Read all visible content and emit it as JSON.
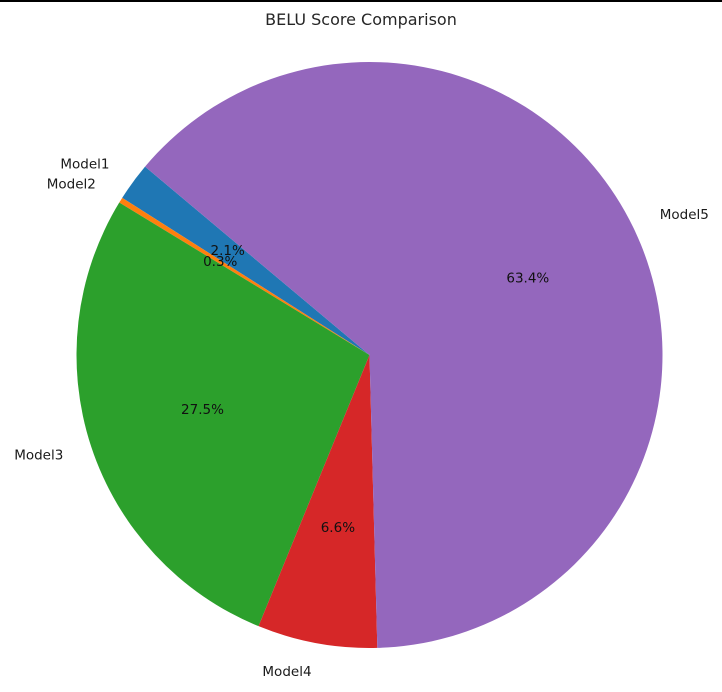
{
  "chart_data": {
    "type": "pie",
    "title": "BELU Score Comparison",
    "categories": [
      "Model1",
      "Model2",
      "Model3",
      "Model4",
      "Model5"
    ],
    "values": [
      2.1,
      0.3,
      27.5,
      6.6,
      63.4
    ],
    "percent_labels": [
      "2.1%",
      "0.3%",
      "27.5%",
      "6.6%",
      "63.4%"
    ],
    "colors": [
      "#1f77b4",
      "#ff7f0e",
      "#2ca02c",
      "#d62728",
      "#9467bd"
    ],
    "start_angle_deg": 140,
    "direction": "counterclockwise"
  }
}
